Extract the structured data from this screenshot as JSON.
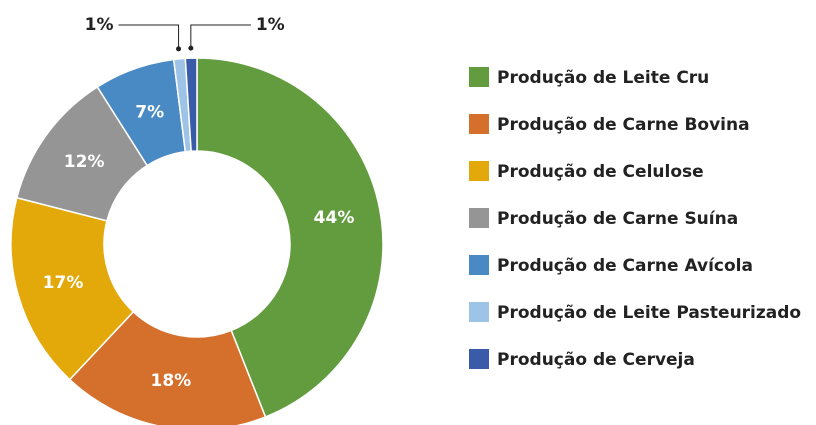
{
  "chart_data": {
    "type": "donut",
    "categories": [
      "Produção de Leite Cru",
      "Produção de Carne Bovina",
      "Produção de Celulose",
      "Produção de Carne Suína",
      "Produção de Carne Avícola",
      "Produção de Leite Pasteurizado",
      "Produção de Cerveja"
    ],
    "values": [
      44,
      18,
      17,
      12,
      7,
      1,
      1
    ],
    "value_labels": [
      "44%",
      "18%",
      "17%",
      "12%",
      "7%",
      "1%",
      "1%"
    ],
    "colors": [
      "#629c3e",
      "#d4702b",
      "#e3a90a",
      "#959595",
      "#4a8ac4",
      "#9dc3e6",
      "#3a5ba8"
    ],
    "legend": "right"
  }
}
